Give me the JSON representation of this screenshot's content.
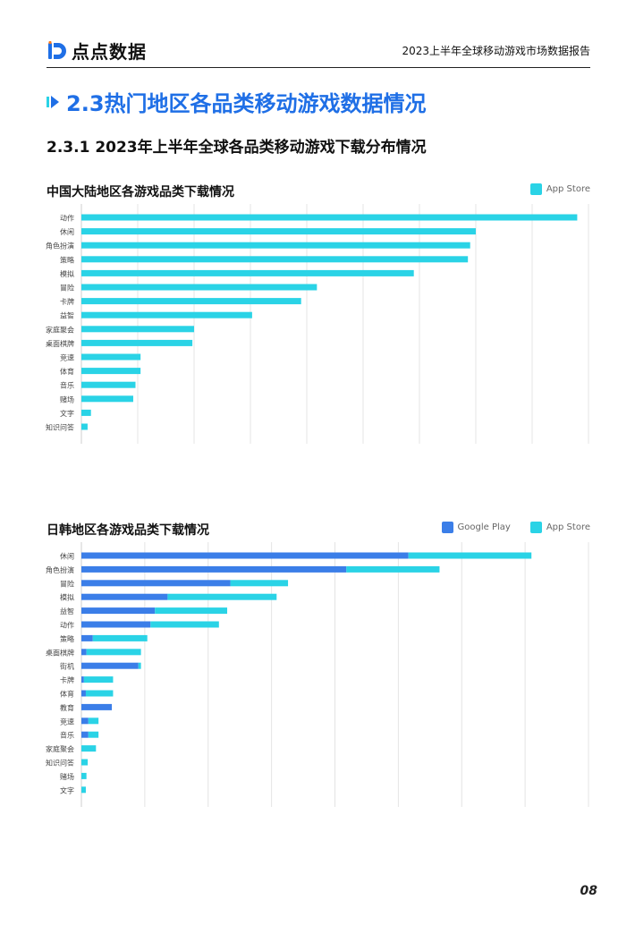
{
  "header": {
    "logo_text": "点点数据",
    "report_title": "2023上半年全球移动游戏市场数据报告"
  },
  "section": {
    "title": "2.3热门地区各品类移动游戏数据情况"
  },
  "subsection": {
    "title": "2.3.1 2023年上半年全球各品类移动游戏下载分布情况"
  },
  "colors": {
    "google_play": "#3b7ee8",
    "app_store": "#2ad3e6",
    "accent": "#1f6fe6"
  },
  "page_number": "08",
  "chart_data": [
    {
      "type": "bar",
      "orientation": "horizontal",
      "title": "中国大陆地区各游戏品类下载情况",
      "legend": [
        "App Store"
      ],
      "legend_position": "top-right",
      "grid": true,
      "xlim": [
        0,
        90
      ],
      "categories": [
        "动作",
        "休闲",
        "角色扮演",
        "策略",
        "模拟",
        "冒险",
        "卡牌",
        "益智",
        "家庭聚会",
        "桌面棋牌",
        "竞速",
        "体育",
        "音乐",
        "赌场",
        "文字",
        "知识问答"
      ],
      "series": [
        {
          "name": "App Store",
          "values": [
            88,
            70,
            69,
            68.6,
            59,
            41.8,
            39,
            30.3,
            20,
            19.7,
            10.5,
            10.5,
            9.6,
            9.2,
            1.7,
            1.1
          ]
        }
      ]
    },
    {
      "type": "bar",
      "orientation": "horizontal",
      "stacked": true,
      "title": "日韩地区各游戏品类下载情况",
      "legend": [
        "Google Play",
        "App Store"
      ],
      "legend_position": "top-right",
      "grid": true,
      "xlim": [
        0,
        80
      ],
      "categories": [
        "休闲",
        "角色扮演",
        "冒险",
        "模拟",
        "益智",
        "动作",
        "策略",
        "桌面棋牌",
        "街机",
        "卡牌",
        "体育",
        "教育",
        "竞速",
        "音乐",
        "家庭聚会",
        "知识问答",
        "赌场",
        "文字"
      ],
      "series": [
        {
          "name": "Google Play",
          "values": [
            51.6,
            41.8,
            23.5,
            13.6,
            11.6,
            10.9,
            1.8,
            0.8,
            9.0,
            0.4,
            0.7,
            4.8,
            1.1,
            1.1,
            0,
            0,
            0,
            0
          ]
        },
        {
          "name": "App Store",
          "values": [
            19.4,
            14.7,
            9.1,
            17.2,
            11.4,
            10.8,
            8.6,
            8.6,
            0.4,
            4.6,
            4.3,
            0,
            1.6,
            1.6,
            2.3,
            1.0,
            0.8,
            0.7
          ]
        }
      ]
    }
  ]
}
